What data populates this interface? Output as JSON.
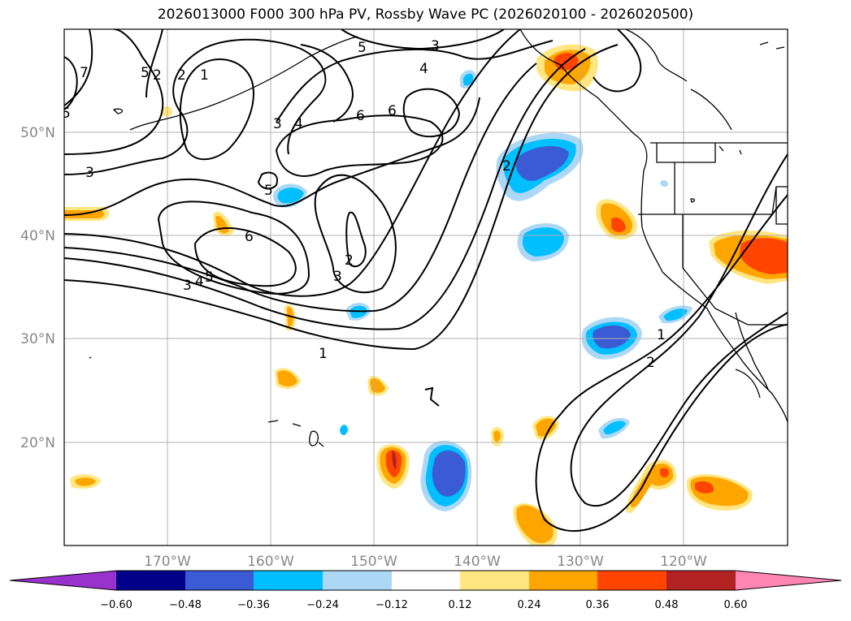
{
  "title": "2026013000 F000 300 hPa PV, Rossby Wave PC (2026020100 - 2026020500)",
  "lat_labels": [
    "50°N",
    "40°N",
    "30°N",
    "20°N"
  ],
  "lon_labels": [
    "170°W",
    "160°W",
    "150°W",
    "140°W",
    "130°W",
    "120°W"
  ],
  "contour_labels": [
    "1",
    "2",
    "3",
    "4",
    "5",
    "6",
    "7",
    "5",
    "4",
    "3",
    "5",
    "6",
    "6",
    "5",
    "4",
    "3",
    "2",
    "3",
    "2",
    "1",
    "2",
    "1",
    "3",
    "5",
    "2"
  ],
  "colorbar": {
    "tick_labels": [
      "−0.60",
      "−0.48",
      "−0.36",
      "−0.24",
      "−0.12",
      "0.12",
      "0.24",
      "0.36",
      "0.48",
      "0.60"
    ],
    "colors": [
      "#9932cc",
      "#00008b",
      "#3b5bd5",
      "#00bfff",
      "#add8f5",
      "#ffffff",
      "#ffe680",
      "#ffa500",
      "#ff4500",
      "#b22222",
      "#ff85b3"
    ]
  }
}
